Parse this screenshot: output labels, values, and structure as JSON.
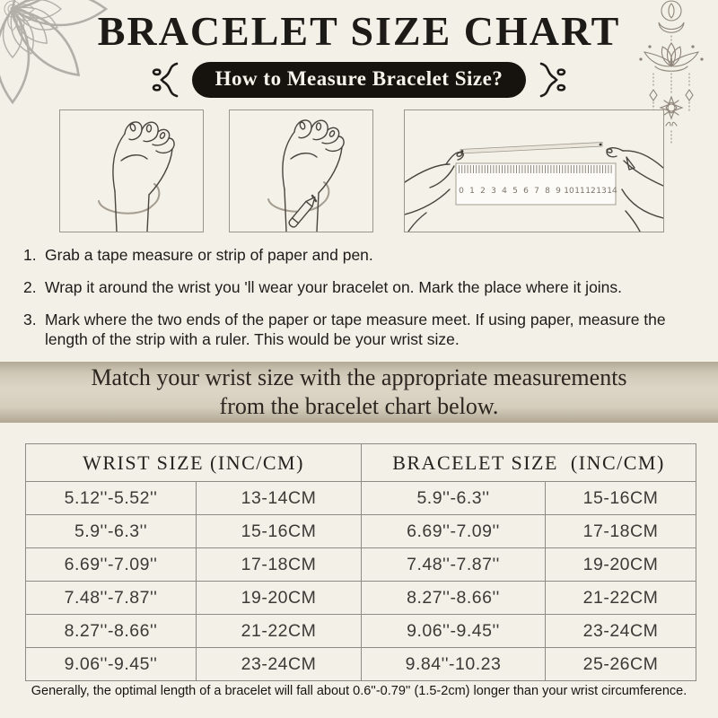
{
  "header": {
    "title": "BRACELET SIZE CHART",
    "pill_label": "How to Measure Bracelet Size?"
  },
  "steps": [
    {
      "num": "1.",
      "text": "Grab a tape measure or strip of paper and pen."
    },
    {
      "num": "2.",
      "text": "Wrap it around the wrist you 'll wear your bracelet on. Mark the place where it joins."
    },
    {
      "num": "3.",
      "text": "Mark where the two ends of the paper or tape measure meet. If using paper, measure the length of the strip with a ruler. This would be your wrist size."
    }
  ],
  "banner": {
    "line1": "Match your wrist size with the appropriate measurements",
    "line2": "from the bracelet chart below."
  },
  "size_table": {
    "header_left": "WRIST SIZE (INC/CM)",
    "header_right": "BRACELET SIZE  (INC/CM)",
    "rows": [
      [
        "5.12''-5.52''",
        "13-14CM",
        "5.9''-6.3''",
        "15-16CM"
      ],
      [
        "5.9''-6.3''",
        "15-16CM",
        "6.69''-7.09''",
        "17-18CM"
      ],
      [
        "6.69''-7.09''",
        "17-18CM",
        "7.48''-7.87''",
        "19-20CM"
      ],
      [
        "7.48''-7.87''",
        "19-20CM",
        "8.27''-8.66''",
        "21-22CM"
      ],
      [
        "8.27''-8.66''",
        "21-22CM",
        "9.06''-9.45''",
        "23-24CM"
      ],
      [
        "9.06''-9.45''",
        "23-24CM",
        "9.84''-10.23",
        "25-26CM"
      ]
    ]
  },
  "illustrations": {
    "ruler_numbers": [
      "0",
      "1",
      "2",
      "3",
      "4",
      "5",
      "6",
      "7",
      "8",
      "9",
      "10",
      "11",
      "12",
      "13",
      "14"
    ]
  },
  "footnote": "Generally, the optimal length of a bracelet will fall about 0.6''-0.79'' (1.5-2cm) longer than your wrist circumference.",
  "colors": {
    "background": "#f3f0e7",
    "ink": "#1d1b18",
    "pill_background": "#16120e",
    "pill_text": "#f7f4ec",
    "banner_light": "#ddd6c7",
    "banner_dark": "#b0a693",
    "banner_text": "#2b261f",
    "table_border": "#8d8b85",
    "table_text": "#3b3a37",
    "ornament_line": "#8d857a",
    "mandala_line": "#b2afa9",
    "sketch_line": "#4a453e",
    "tape_line": "#a49d90"
  }
}
